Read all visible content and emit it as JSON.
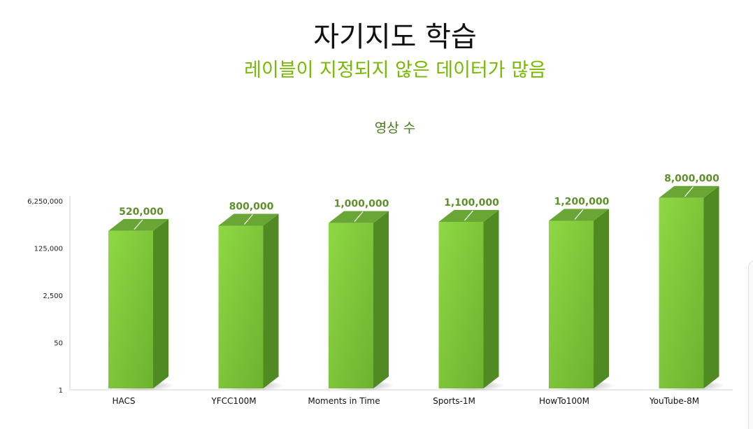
{
  "slide": {
    "title": "자기지도 학습",
    "subtitle": "레이블이 지정되지 않은 데이터가 많음"
  },
  "colors": {
    "title": "#111111",
    "subtitle": "#76b900",
    "chart_title": "#4a7a1a",
    "bar_front_top": "#8fd844",
    "bar_front_bottom": "#6db22e",
    "bar_side": "#4f8a22",
    "bar_top": "#6aa636",
    "data_label": "#5f8f2a"
  },
  "chart_data": {
    "type": "bar",
    "title": "영상 수",
    "categories": [
      "HACS",
      "YFCC100M",
      "Moments in Time",
      "Sports-1M",
      "HowTo100M",
      "YouTube-8M"
    ],
    "values": [
      520000,
      800000,
      1000000,
      1100000,
      1200000,
      8000000
    ],
    "data_labels": [
      "520,000",
      "800,000",
      "1,000,000",
      "1,100,000",
      "1,200,000",
      "8,000,000"
    ],
    "y_scale": "log",
    "y_ticks": [
      1,
      50,
      2500,
      125000,
      6250000
    ],
    "y_tick_labels": [
      "1",
      "50",
      "2,500",
      "125,000",
      "6,250,000"
    ],
    "ylim": [
      1,
      6250000
    ],
    "xlabel": "",
    "ylabel": "",
    "grid": false,
    "legend": "none",
    "style": "3d-column"
  }
}
